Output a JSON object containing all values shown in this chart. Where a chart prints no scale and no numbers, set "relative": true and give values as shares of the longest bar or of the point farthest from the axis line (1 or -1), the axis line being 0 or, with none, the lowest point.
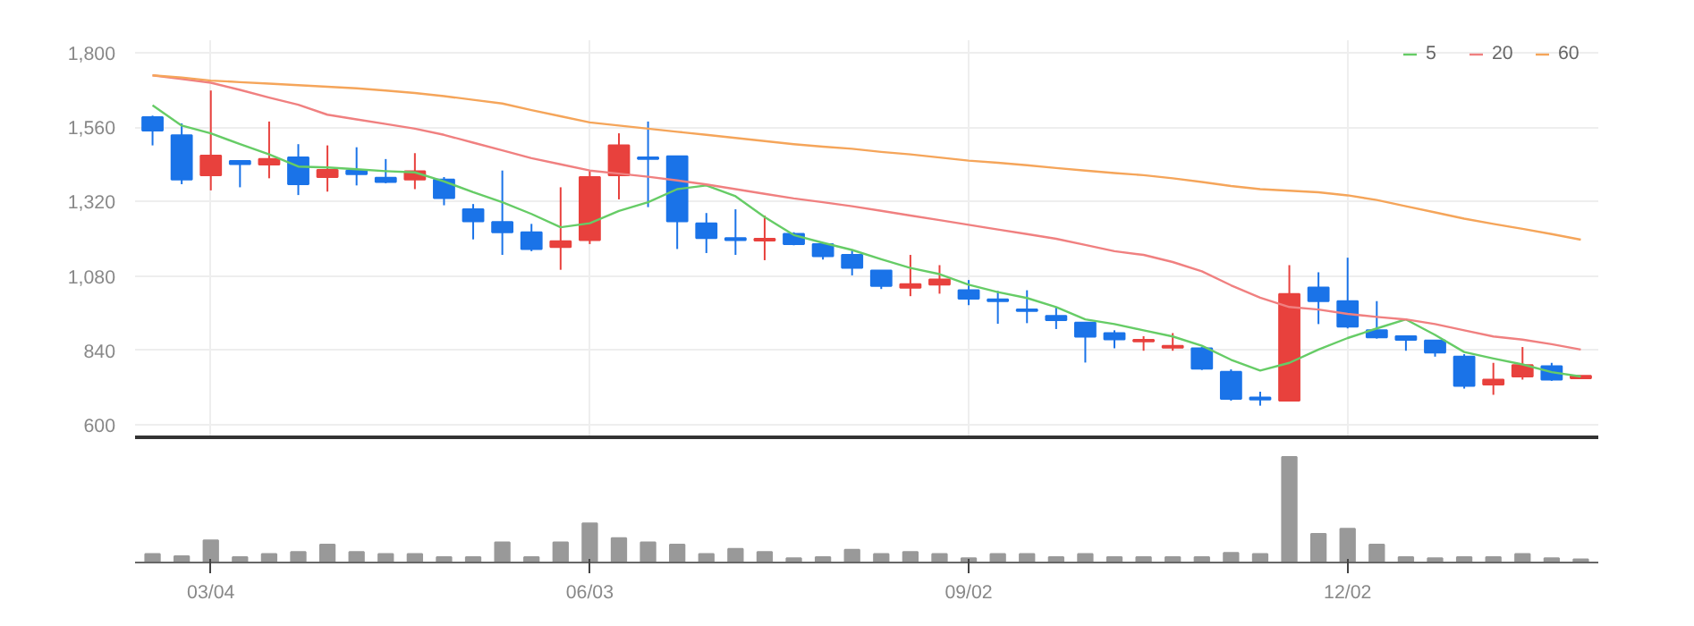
{
  "chart_data": [
    {
      "type": "candlestick",
      "ohlc": [
        [
          1592,
          1597,
          1501,
          1549
        ],
        [
          1534,
          1572,
          1376,
          1391
        ],
        [
          1405,
          1678,
          1356,
          1468
        ],
        [
          1451,
          1451,
          1366,
          1441
        ],
        [
          1439,
          1578,
          1395,
          1457
        ],
        [
          1462,
          1505,
          1341,
          1376
        ],
        [
          1399,
          1501,
          1352,
          1422
        ],
        [
          1420,
          1495,
          1372,
          1408
        ],
        [
          1397,
          1457,
          1379,
          1383
        ],
        [
          1391,
          1476,
          1360,
          1418
        ],
        [
          1391,
          1399,
          1308,
          1331
        ],
        [
          1295,
          1312,
          1198,
          1256
        ],
        [
          1254,
          1420,
          1148,
          1221
        ],
        [
          1221,
          1248,
          1160,
          1167
        ],
        [
          1173,
          1366,
          1100,
          1192
        ],
        [
          1196,
          1420,
          1183,
          1399
        ],
        [
          1405,
          1540,
          1327,
          1501
        ],
        [
          1462,
          1578,
          1302,
          1457
        ],
        [
          1466,
          1466,
          1167,
          1256
        ],
        [
          1250,
          1283,
          1154,
          1202
        ],
        [
          1202,
          1295,
          1148,
          1196
        ],
        [
          1194,
          1275,
          1131,
          1200
        ],
        [
          1216,
          1221,
          1179,
          1183
        ],
        [
          1183,
          1188,
          1133,
          1144
        ],
        [
          1148,
          1163,
          1082,
          1106
        ],
        [
          1098,
          1098,
          1038,
          1048
        ],
        [
          1042,
          1148,
          1015,
          1054
        ],
        [
          1052,
          1115,
          1023,
          1069
        ],
        [
          1034,
          1067,
          986,
          1007
        ],
        [
          1005,
          1032,
          926,
          999
        ],
        [
          972,
          1034,
          928,
          967
        ],
        [
          951,
          980,
          909,
          938
        ],
        [
          930,
          930,
          801,
          884
        ],
        [
          896,
          905,
          847,
          876
        ],
        [
          869,
          886,
          839,
          874
        ],
        [
          849,
          896,
          839,
          855
        ],
        [
          847,
          851,
          777,
          781
        ],
        [
          771,
          779,
          678,
          684
        ],
        [
          688,
          707,
          662,
          682
        ],
        [
          678,
          1115,
          678,
          1022
        ],
        [
          1043,
          1092,
          925,
          999
        ],
        [
          999,
          1139,
          911,
          917
        ],
        [
          905,
          999,
          878,
          882
        ],
        [
          886,
          886,
          839,
          874
        ],
        [
          872,
          872,
          820,
          833
        ],
        [
          820,
          828,
          717,
          726
        ],
        [
          730,
          800,
          697,
          746
        ],
        [
          756,
          851,
          746,
          793
        ],
        [
          789,
          800,
          742,
          746
        ],
        [
          750,
          758,
          750,
          758
        ]
      ],
      "colors": [
        "#1a73e8",
        "#1a73e8",
        "#e8413d",
        "#1a73e8",
        "#e8413d",
        "#1a73e8",
        "#e8413d",
        "#1a73e8",
        "#1a73e8",
        "#e8413d",
        "#1a73e8",
        "#1a73e8",
        "#1a73e8",
        "#1a73e8",
        "#e8413d",
        "#e8413d",
        "#e8413d",
        "#1a73e8",
        "#1a73e8",
        "#1a73e8",
        "#1a73e8",
        "#e8413d",
        "#1a73e8",
        "#1a73e8",
        "#1a73e8",
        "#1a73e8",
        "#e8413d",
        "#e8413d",
        "#1a73e8",
        "#1a73e8",
        "#1a73e8",
        "#1a73e8",
        "#1a73e8",
        "#1a73e8",
        "#e8413d",
        "#e8413d",
        "#1a73e8",
        "#1a73e8",
        "#1a73e8",
        "#e8413d",
        "#1a73e8",
        "#1a73e8",
        "#1a73e8",
        "#1a73e8",
        "#1a73e8",
        "#1a73e8",
        "#e8413d",
        "#e8413d",
        "#1a73e8",
        "#e8413d"
      ],
      "series": [
        {
          "name": "5",
          "type": "line",
          "color": "#66cc66",
          "values": [
            1630,
            1565,
            1540,
            1505,
            1472,
            1433,
            1430,
            1424,
            1418,
            1414,
            1385,
            1350,
            1318,
            1280,
            1237,
            1250,
            1290,
            1318,
            1360,
            1372,
            1337,
            1270,
            1212,
            1187,
            1164,
            1134,
            1106,
            1086,
            1052,
            1028,
            1009,
            980,
            940,
            925,
            905,
            885,
            855,
            810,
            775,
            800,
            843,
            880,
            911,
            940,
            890,
            835,
            814,
            795,
            770,
            756
          ]
        },
        {
          "name": "20",
          "type": "line",
          "color": "#f08080",
          "values": [
            1727,
            1715,
            1703,
            1680,
            1655,
            1632,
            1600,
            1585,
            1570,
            1555,
            1535,
            1510,
            1485,
            1460,
            1440,
            1420,
            1410,
            1400,
            1388,
            1375,
            1360,
            1345,
            1330,
            1318,
            1305,
            1290,
            1275,
            1260,
            1245,
            1230,
            1215,
            1200,
            1180,
            1160,
            1148,
            1125,
            1095,
            1050,
            1010,
            980,
            972,
            958,
            948,
            940,
            925,
            905,
            885,
            875,
            860,
            843
          ]
        },
        {
          "name": "60",
          "type": "line",
          "color": "#f5a55a",
          "values": [
            1727,
            1720,
            1710,
            1705,
            1700,
            1695,
            1690,
            1685,
            1678,
            1670,
            1660,
            1648,
            1636,
            1615,
            1595,
            1575,
            1565,
            1555,
            1545,
            1535,
            1525,
            1515,
            1505,
            1497,
            1490,
            1480,
            1472,
            1462,
            1452,
            1445,
            1437,
            1428,
            1420,
            1412,
            1405,
            1395,
            1383,
            1370,
            1360,
            1355,
            1350,
            1340,
            1325,
            1305,
            1285,
            1265,
            1248,
            1232,
            1215,
            1197
          ]
        }
      ],
      "ylim": [
        560,
        1840
      ],
      "yticks": [
        {
          "value": 600,
          "label": "600"
        },
        {
          "value": 840,
          "label": "840"
        },
        {
          "value": 1080,
          "label": "1,080"
        },
        {
          "value": 1320,
          "label": "1,320"
        },
        {
          "value": 1560,
          "label": "1,560"
        },
        {
          "value": 1800,
          "label": "1,800"
        }
      ],
      "grid": true,
      "legend": "top right",
      "tick_labels": "y"
    },
    {
      "type": "bar",
      "relative": true,
      "categories": [
        null,
        null,
        "03/04",
        null,
        null,
        null,
        null,
        null,
        null,
        null,
        null,
        null,
        null,
        null,
        null,
        "06/03",
        null,
        null,
        null,
        null,
        null,
        null,
        null,
        null,
        null,
        null,
        null,
        null,
        "09/02",
        null,
        null,
        null,
        null,
        null,
        null,
        null,
        null,
        null,
        null,
        null,
        null,
        "12/02",
        null,
        null,
        null,
        null,
        null,
        null,
        null,
        null
      ],
      "values": [
        0.08,
        0.06,
        0.21,
        0.05,
        0.08,
        0.1,
        0.17,
        0.1,
        0.08,
        0.08,
        0.05,
        0.05,
        0.19,
        0.05,
        0.19,
        0.37,
        0.23,
        0.19,
        0.17,
        0.08,
        0.13,
        0.1,
        0.04,
        0.05,
        0.12,
        0.08,
        0.1,
        0.08,
        0.04,
        0.08,
        0.08,
        0.05,
        0.08,
        0.05,
        0.05,
        0.05,
        0.05,
        0.09,
        0.08,
        1,
        0.27,
        0.32,
        0.17,
        0.05,
        0.04,
        0.05,
        0.05,
        0.08,
        0.04,
        0.03
      ],
      "color": "#999999",
      "tick_labels": "x"
    }
  ]
}
